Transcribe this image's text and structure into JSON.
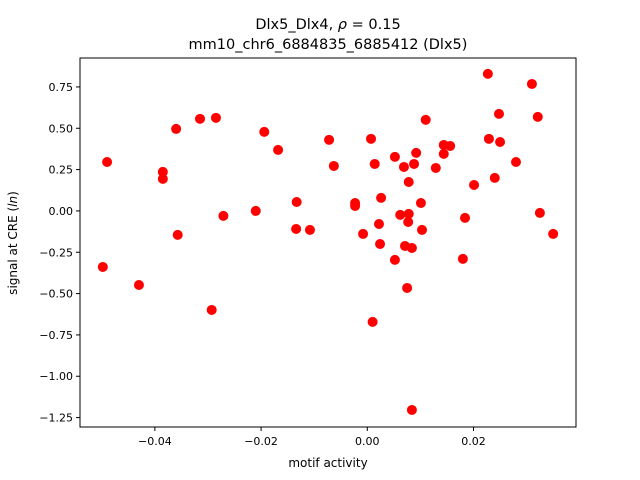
{
  "chart_data": {
    "type": "scatter",
    "title_line1_prefix": "Dlx5_Dlx4, ",
    "title_rho_symbol": "ρ",
    "title_rho_value": " = 0.15",
    "title_line2": "mm10_chr6_6884835_6885412 (Dlx5)",
    "xlabel": "motif activity",
    "ylabel_prefix": "signal at CRE (",
    "ylabel_italic": "ln",
    "ylabel_suffix": ")",
    "xlim": [
      -0.0541,
      0.0393
    ],
    "ylim": [
      -1.307,
      0.925
    ],
    "xticks": [
      {
        "v": -0.04,
        "label": "−0.04"
      },
      {
        "v": -0.02,
        "label": "−0.02"
      },
      {
        "v": 0.0,
        "label": "0.00"
      },
      {
        "v": 0.02,
        "label": "0.02"
      }
    ],
    "yticks": [
      {
        "v": 0.75,
        "label": "0.75"
      },
      {
        "v": 0.5,
        "label": "0.50"
      },
      {
        "v": 0.25,
        "label": "0.25"
      },
      {
        "v": 0.0,
        "label": "0.00"
      },
      {
        "v": -0.25,
        "label": "−0.25"
      },
      {
        "v": -0.5,
        "label": "−0.50"
      },
      {
        "v": -0.75,
        "label": "−0.75"
      },
      {
        "v": -1.0,
        "label": "−1.00"
      },
      {
        "v": -1.25,
        "label": "−1.25"
      }
    ],
    "grid": false,
    "marker_color": "#ff0000",
    "points": [
      [
        -0.0498,
        -0.339
      ],
      [
        -0.049,
        0.296
      ],
      [
        -0.043,
        -0.448
      ],
      [
        -0.0385,
        0.236
      ],
      [
        -0.0385,
        0.194
      ],
      [
        -0.036,
        0.496
      ],
      [
        -0.0357,
        -0.145
      ],
      [
        -0.0315,
        0.557
      ],
      [
        -0.0293,
        -0.599
      ],
      [
        -0.0285,
        0.563
      ],
      [
        -0.0271,
        -0.03
      ],
      [
        -0.021,
        0.0
      ],
      [
        -0.0194,
        0.478
      ],
      [
        -0.0168,
        0.369
      ],
      [
        -0.0133,
        0.054
      ],
      [
        -0.0134,
        -0.109
      ],
      [
        -0.0108,
        -0.115
      ],
      [
        -0.0072,
        0.43
      ],
      [
        -0.0063,
        0.272
      ],
      [
        -0.0023,
        0.048
      ],
      [
        -0.0023,
        0.03
      ],
      [
        -0.0008,
        -0.139
      ],
      [
        0.0007,
        0.436
      ],
      [
        0.001,
        -0.671
      ],
      [
        0.0014,
        0.284
      ],
      [
        0.0022,
        -0.079
      ],
      [
        0.0024,
        -0.2
      ],
      [
        0.0026,
        0.079
      ],
      [
        0.0052,
        0.327
      ],
      [
        0.0052,
        -0.296
      ],
      [
        0.0062,
        -0.024
      ],
      [
        0.0069,
        0.266
      ],
      [
        0.0071,
        -0.212
      ],
      [
        0.0075,
        -0.466
      ],
      [
        0.0077,
        -0.067
      ],
      [
        0.0078,
        -0.018
      ],
      [
        0.0078,
        0.175
      ],
      [
        0.0084,
        -0.224
      ],
      [
        0.0084,
        -1.204
      ],
      [
        0.0088,
        0.284
      ],
      [
        0.0092,
        0.351
      ],
      [
        0.0101,
        0.048
      ],
      [
        0.0103,
        -0.115
      ],
      [
        0.011,
        0.551
      ],
      [
        0.0129,
        0.26
      ],
      [
        0.0144,
        0.399
      ],
      [
        0.0144,
        0.345
      ],
      [
        0.0156,
        0.393
      ],
      [
        0.018,
        -0.29
      ],
      [
        0.0184,
        -0.042
      ],
      [
        0.0201,
        0.157
      ],
      [
        0.0227,
        0.829
      ],
      [
        0.0229,
        0.436
      ],
      [
        0.024,
        0.2
      ],
      [
        0.0248,
        0.587
      ],
      [
        0.025,
        0.417
      ],
      [
        0.028,
        0.296
      ],
      [
        0.031,
        0.768
      ],
      [
        0.0321,
        0.569
      ],
      [
        0.0325,
        -0.012
      ],
      [
        0.035,
        -0.139
      ]
    ]
  }
}
